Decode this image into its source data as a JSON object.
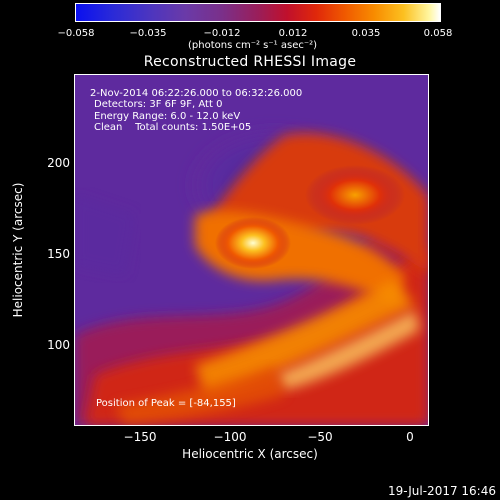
{
  "colorbar": {
    "ticks": [
      "−0.058",
      "−0.035",
      "−0.012",
      "0.012",
      "0.035",
      "0.058"
    ],
    "unit": "(photons cm⁻² s⁻¹ asec⁻²)"
  },
  "title": "Reconstructed RHESSI Image",
  "info": {
    "time_range": "2-Nov-2014 06:22:26.000 to 06:32:26.000",
    "detectors": "Detectors: 3F 6F 9F, Att 0",
    "energy": "Energy Range: 6.0 - 12.0 keV",
    "clean": "Clean    Total counts: 1.50E+05",
    "peak": "Position of Peak = [-84,155]"
  },
  "axes": {
    "xlabel": "Heliocentric X (arcsec)",
    "ylabel": "Heliocentric Y (arcsec)",
    "xticks": [
      "−150",
      "−100",
      "−50",
      "0"
    ],
    "yticks": [
      "200",
      "150",
      "100"
    ]
  },
  "timestamp": "19-Jul-2017 16:46"
}
